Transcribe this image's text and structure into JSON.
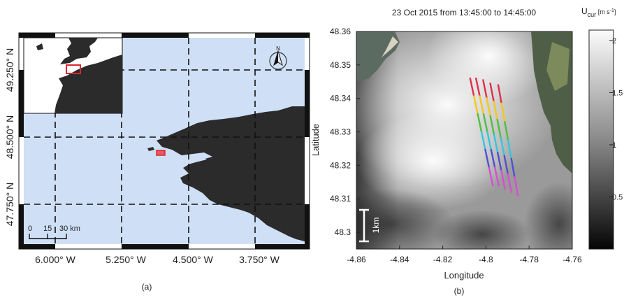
{
  "panel_a": {
    "caption": "(a)",
    "lon_ticks": [
      "6.000° W",
      "5.250° W",
      "4.500° W",
      "3.750° W"
    ],
    "lat_ticks": [
      "49.250° N",
      "48.500° N",
      "47.750° N"
    ],
    "scale_bar": {
      "labels": [
        "0",
        "15",
        "30 km"
      ]
    },
    "north_label": "N",
    "colors": {
      "sea": "#cfe0f6",
      "land": "#2b2b2b",
      "marker": "#d9272e"
    }
  },
  "panel_b": {
    "caption": "(b)",
    "title": "23 Oct 2015 from 13:45:00 to 14:45:00",
    "xlabel": "Longitude",
    "ylabel": "Latitude",
    "scale_label": "1km",
    "colorbar": {
      "label_main": "U",
      "label_sub": "cur",
      "label_unit": " [m s",
      "label_exp": "-1",
      "label_close": "]",
      "ticks": [
        "2",
        "1.5",
        "1",
        "0.5"
      ],
      "tick_values": [
        2,
        1.5,
        1,
        0.5
      ],
      "range": [
        0,
        2.1
      ]
    }
  },
  "chart_data": {
    "type": "scatter",
    "xlim": [
      -4.86,
      -4.76
    ],
    "ylim": [
      48.295,
      48.36
    ],
    "x_ticks": [
      "-4.86",
      "-4.84",
      "-4.82",
      "-4.8",
      "-4.78",
      "-4.76"
    ],
    "x_tick_values": [
      -4.86,
      -4.84,
      -4.82,
      -4.8,
      -4.78,
      -4.76
    ],
    "y_ticks": [
      "48.36",
      "48.35",
      "48.34",
      "48.33",
      "48.32",
      "48.31",
      "48.3"
    ],
    "y_tick_values": [
      48.36,
      48.35,
      48.34,
      48.33,
      48.32,
      48.31,
      48.3
    ],
    "tracks": [
      {
        "x1": -4.8073,
        "y1": 48.346,
        "x2": -4.7968,
        "y2": 48.314
      },
      {
        "x1": -4.8046,
        "y1": 48.346,
        "x2": -4.7941,
        "y2": 48.314
      },
      {
        "x1": -4.8013,
        "y1": 48.3455,
        "x2": -4.7912,
        "y2": 48.313
      },
      {
        "x1": -4.798,
        "y1": 48.3445,
        "x2": -4.7882,
        "y2": 48.312
      },
      {
        "x1": -4.7943,
        "y1": 48.344,
        "x2": -4.7852,
        "y2": 48.311
      }
    ],
    "track_colors": [
      "#e02f4c",
      "#f2c81d",
      "#4fbe3d",
      "#34c6dd",
      "#4f4fd0",
      "#d64fd2"
    ]
  }
}
